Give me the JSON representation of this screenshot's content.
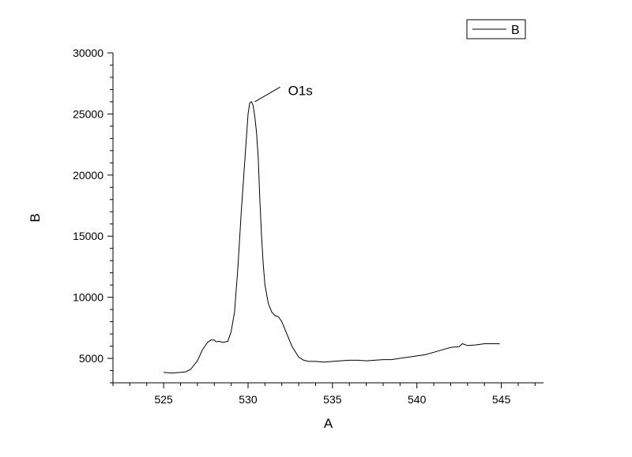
{
  "chart_data": {
    "type": "line",
    "title": "",
    "xlabel": "A",
    "ylabel": "B",
    "xlim": [
      522,
      547.5
    ],
    "ylim": [
      3000,
      30000
    ],
    "x_ticks": [
      525,
      530,
      535,
      540,
      545
    ],
    "y_ticks": [
      5000,
      10000,
      15000,
      20000,
      25000,
      30000
    ],
    "x_minor_step": 1,
    "y_minor_step": 1000,
    "grid": false,
    "legend": {
      "placement": "top-right",
      "entries": [
        "B"
      ]
    },
    "annotations": [
      {
        "text": "O1s",
        "x": 530.4,
        "y": 26000,
        "label_x": 531.9,
        "label_y": 27200
      }
    ],
    "colors": {
      "line": "#000000",
      "axis": "#000000",
      "background": "#ffffff"
    },
    "series": [
      {
        "name": "B",
        "x": [
          525.0,
          525.5,
          526.0,
          526.3,
          526.6,
          527.0,
          527.3,
          527.6,
          527.8,
          528.0,
          528.1,
          528.3,
          528.5,
          528.8,
          529.0,
          529.2,
          529.4,
          529.6,
          529.8,
          530.0,
          530.1,
          530.2,
          530.3,
          530.4,
          530.5,
          530.6,
          530.7,
          530.8,
          530.9,
          531.0,
          531.2,
          531.4,
          531.6,
          531.8,
          532.0,
          532.3,
          532.6,
          533.0,
          533.3,
          533.6,
          534.0,
          534.5,
          535.0,
          535.5,
          536.0,
          536.5,
          537.0,
          537.5,
          538.0,
          538.5,
          539.0,
          539.5,
          540.0,
          540.5,
          541.0,
          541.5,
          542.0,
          542.5,
          542.7,
          543.0,
          543.5,
          544.0,
          544.5,
          544.9
        ],
        "y": [
          3850,
          3800,
          3850,
          3900,
          4100,
          4800,
          5700,
          6300,
          6500,
          6500,
          6350,
          6400,
          6300,
          6400,
          7200,
          8800,
          12500,
          17000,
          21000,
          25000,
          25900,
          26000,
          25700,
          24800,
          23500,
          21500,
          18000,
          15000,
          12700,
          11000,
          9500,
          8800,
          8500,
          8400,
          8000,
          7000,
          6000,
          5100,
          4850,
          4750,
          4750,
          4700,
          4750,
          4800,
          4850,
          4850,
          4800,
          4850,
          4900,
          4900,
          5000,
          5100,
          5200,
          5300,
          5500,
          5700,
          5900,
          5950,
          6200,
          6050,
          6100,
          6200,
          6200,
          6200
        ]
      }
    ]
  }
}
